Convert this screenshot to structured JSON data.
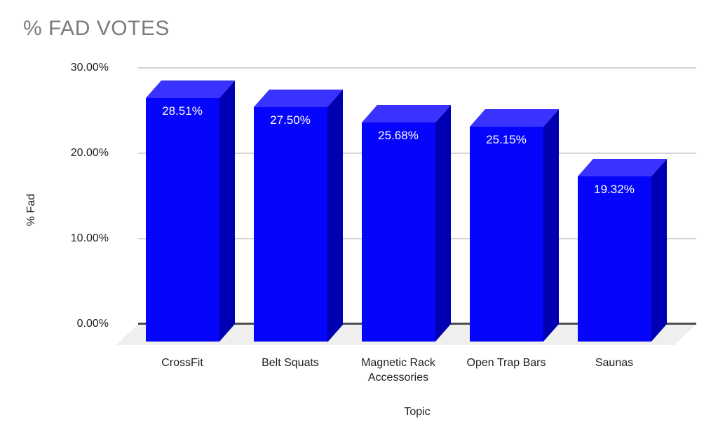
{
  "chart_data": {
    "type": "bar",
    "effect_3d": true,
    "title": "% FAD VOTES",
    "xlabel": "Topic",
    "ylabel": "% Fad",
    "categories": [
      "CrossFit",
      "Belt Squats",
      "Magnetic Rack Accessories",
      "Open Trap Bars",
      "Saunas"
    ],
    "values": [
      28.51,
      27.5,
      25.68,
      25.15,
      19.32
    ],
    "value_labels": [
      "28.51%",
      "27.50%",
      "25.68%",
      "25.15%",
      "19.32%"
    ],
    "ylim": [
      0,
      30
    ],
    "yticks": [
      {
        "value": 0,
        "label": "0.00%"
      },
      {
        "value": 10,
        "label": "10.00%"
      },
      {
        "value": 20,
        "label": "20.00%"
      },
      {
        "value": 30,
        "label": "30.00%"
      }
    ],
    "grid": true,
    "legend_position": "none"
  },
  "colors": {
    "background": "#ffffff",
    "bar_front": "#0505fb",
    "bar_top": "#3a33ff",
    "bar_side": "#0000b2",
    "floor": "#efefef",
    "gridline": "#d4d4d4",
    "axis_line": "#4d4d4d",
    "title_text": "#7b7b7b",
    "axis_text": "#212121",
    "value_label_text": "#ffffff"
  }
}
